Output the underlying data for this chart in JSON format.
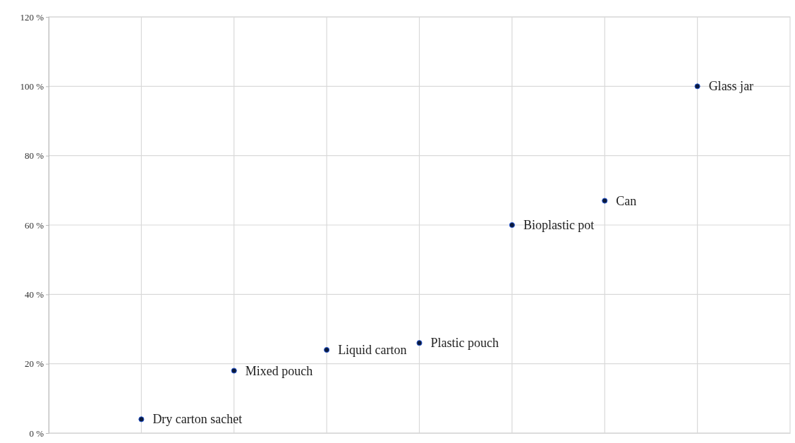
{
  "chart_data": {
    "type": "scatter",
    "categories": [
      null,
      null,
      null,
      null,
      null,
      null,
      null
    ],
    "series": [
      {
        "color": "#0b1a3c",
        "values": [
          4,
          18,
          24,
          26,
          60,
          67,
          100
        ],
        "value_labels": [
          "Dry carton sachet",
          "Mixed pouch",
          "Liquid carton",
          "Plastic pouch",
          "Bioplastic pot",
          "Can",
          "Glass jar"
        ]
      }
    ],
    "ylim": [
      0,
      120
    ],
    "yticks": [
      {
        "value": 0,
        "label": "0 %"
      },
      {
        "value": 20,
        "label": "20 %"
      },
      {
        "value": 40,
        "label": "40 %"
      },
      {
        "value": 60,
        "label": "60 %"
      },
      {
        "value": 80,
        "label": "80 %"
      },
      {
        "value": 100,
        "label": "100 %"
      },
      {
        "value": 120,
        "label": "120 %"
      }
    ],
    "grid": true,
    "marker": "circle"
  }
}
